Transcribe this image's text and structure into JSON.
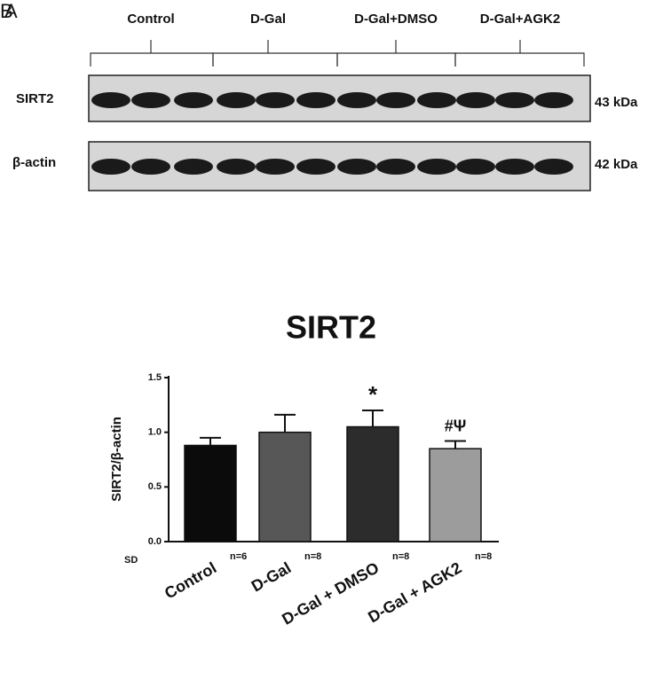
{
  "blot": {
    "panel_labels": [
      "A",
      "B"
    ],
    "groups": [
      "Control",
      "D-Gal",
      "D-Gal+DMSO",
      "D-Gal+AGK2"
    ],
    "rows": [
      {
        "label": "SIRT2",
        "size": "43 kDa"
      },
      {
        "label": "β-actin",
        "size": "42 kDa"
      }
    ]
  },
  "chart_data": {
    "type": "bar",
    "title": "SIRT2",
    "y_label": "SIRT2/β-actin",
    "x_note": "SD",
    "categories": [
      "Control",
      "D-Gal",
      "D-Gal + DMSO",
      "D-Gal + AGK2"
    ],
    "n_labels": [
      "n=6",
      "n=8",
      "n=8",
      "n=8"
    ],
    "values": [
      0.88,
      1.0,
      1.05,
      0.85
    ],
    "errors": [
      0.07,
      0.16,
      0.15,
      0.07
    ],
    "annotations": [
      null,
      null,
      "*",
      "#Ψ"
    ],
    "colors": [
      "#0b0b0b",
      "#575757",
      "#2c2c2c",
      "#9c9c9c"
    ],
    "ylim": [
      0,
      1.5
    ],
    "yticks": [
      {
        "value": 0,
        "label": "0.0"
      },
      {
        "value": 0.5,
        "label": "0.5"
      },
      {
        "value": 1,
        "label": "1.0"
      },
      {
        "value": 1.5,
        "label": "1.5"
      }
    ]
  }
}
